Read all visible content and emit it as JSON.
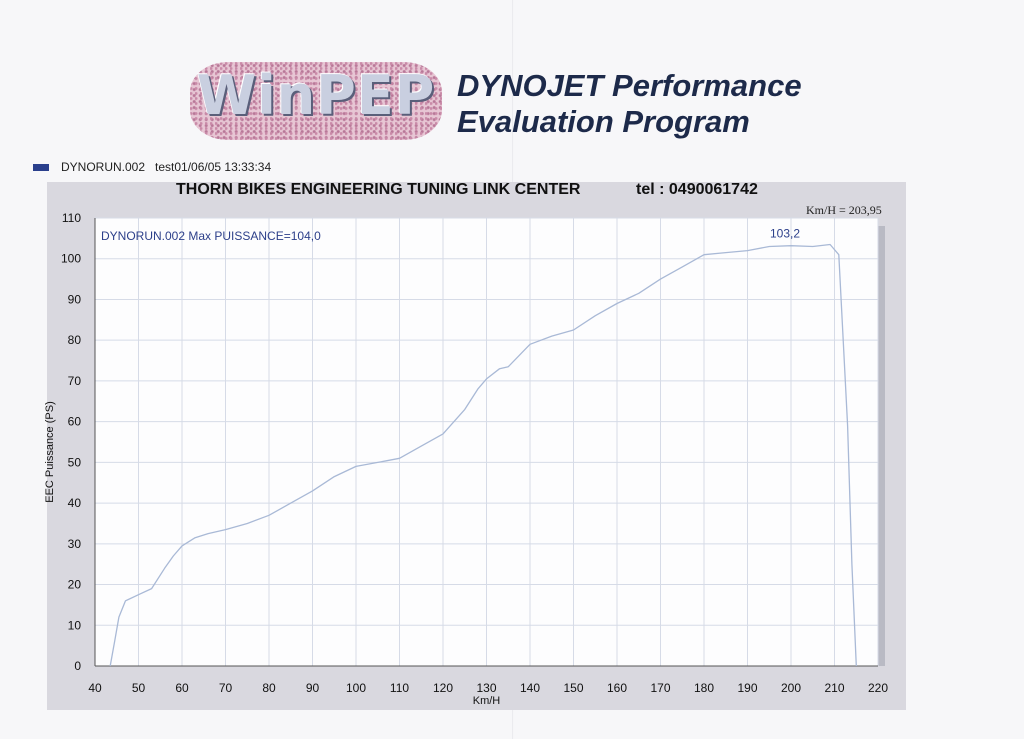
{
  "logo": {
    "text": "WinPEP"
  },
  "program": {
    "title_line1": "DYNOJET Performance",
    "title_line2": "Evaluation Program"
  },
  "legend": {
    "run": "DYNORUN.002",
    "info": "test01/06/05 13:33:34",
    "color": "#2a3f8c"
  },
  "header": {
    "title": "THORN BIKES ENGINEERING TUNING LINK CENTER",
    "tel": "tel : 0490061742"
  },
  "readout": {
    "speed": "Km/H = 203,95"
  },
  "colors": {
    "curve": "#a9b9d6",
    "plot_bg": "#fdfdfe",
    "frame": "#d9d8df",
    "grid": "#d6dbe7",
    "label": "#2c3f8a"
  },
  "chart_data": {
    "type": "line",
    "title": "",
    "xlabel": "Km/H",
    "ylabel": "EEC Puissance (PS)",
    "xlim": [
      40,
      220
    ],
    "ylim": [
      0,
      110
    ],
    "x_ticks": [
      40,
      50,
      60,
      70,
      80,
      90,
      100,
      110,
      120,
      130,
      140,
      150,
      160,
      170,
      180,
      190,
      200,
      210,
      220
    ],
    "y_ticks": [
      0,
      10,
      20,
      30,
      40,
      50,
      60,
      70,
      80,
      90,
      100,
      110
    ],
    "grid": true,
    "annotation": "DYNORUN.002  Max PUISSANCE=104,0",
    "peak_label": {
      "text": "103,2",
      "x": 200,
      "y": 103.2
    },
    "series": [
      {
        "name": "DYNORUN.002",
        "x": [
          43.5,
          44.5,
          45.5,
          47,
          50,
          53,
          56,
          58,
          60,
          63,
          66,
          70,
          75,
          80,
          85,
          90,
          95,
          100,
          105,
          110,
          115,
          120,
          125,
          128,
          130,
          133,
          135,
          140,
          145,
          150,
          155,
          160,
          165,
          170,
          175,
          180,
          185,
          190,
          195,
          200,
          205,
          209,
          211,
          212,
          213,
          214,
          215
        ],
        "y": [
          0,
          6,
          12,
          16,
          17.5,
          19,
          24,
          27,
          29.5,
          31.5,
          32.5,
          33.5,
          35,
          37,
          40,
          43,
          46.5,
          49,
          50,
          51,
          54,
          57,
          63,
          68,
          70.5,
          73,
          73.5,
          79,
          81,
          82.5,
          86,
          89,
          91.5,
          95,
          98,
          101,
          101.5,
          102,
          103,
          103.2,
          103,
          103.5,
          101,
          80,
          59,
          25,
          0
        ]
      }
    ]
  }
}
